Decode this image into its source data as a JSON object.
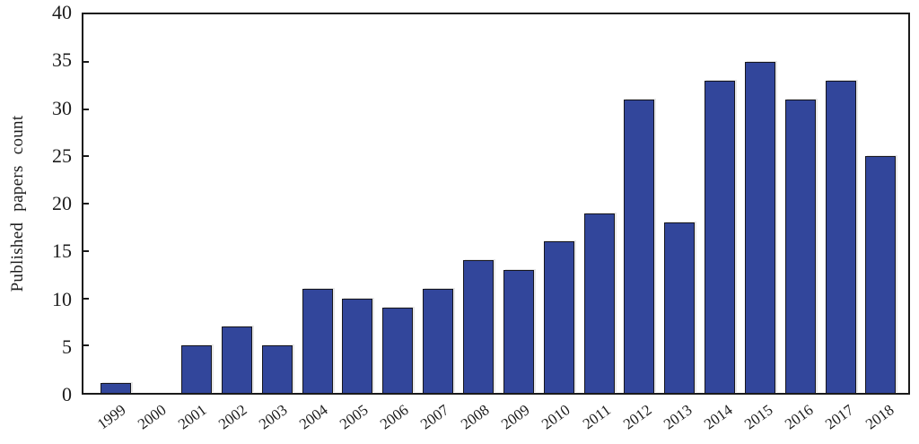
{
  "figure": {
    "background": "#ffffff",
    "text_color": "#1c1c1c",
    "frame_color": "#1a1a1a"
  },
  "chart_data": {
    "type": "bar",
    "title": "",
    "xlabel": "",
    "ylabel": "Published papers count",
    "categories": [
      "1999",
      "2000",
      "2001",
      "2002",
      "2003",
      "2004",
      "2005",
      "2006",
      "2007",
      "2008",
      "2009",
      "2010",
      "2011",
      "2012",
      "2013",
      "2014",
      "2015",
      "2016",
      "2017",
      "2018"
    ],
    "values": [
      1,
      0,
      5,
      7,
      5,
      11,
      10,
      9,
      11,
      14,
      13,
      16,
      19,
      31,
      18,
      33,
      35,
      31,
      33,
      25
    ],
    "ylim": [
      0,
      40
    ],
    "yticks": [
      0,
      5,
      10,
      15,
      20,
      25,
      30,
      35,
      40
    ],
    "grid": false,
    "legend": "none",
    "bar_color": "#32469b",
    "bar_border_color": "#16161e"
  }
}
